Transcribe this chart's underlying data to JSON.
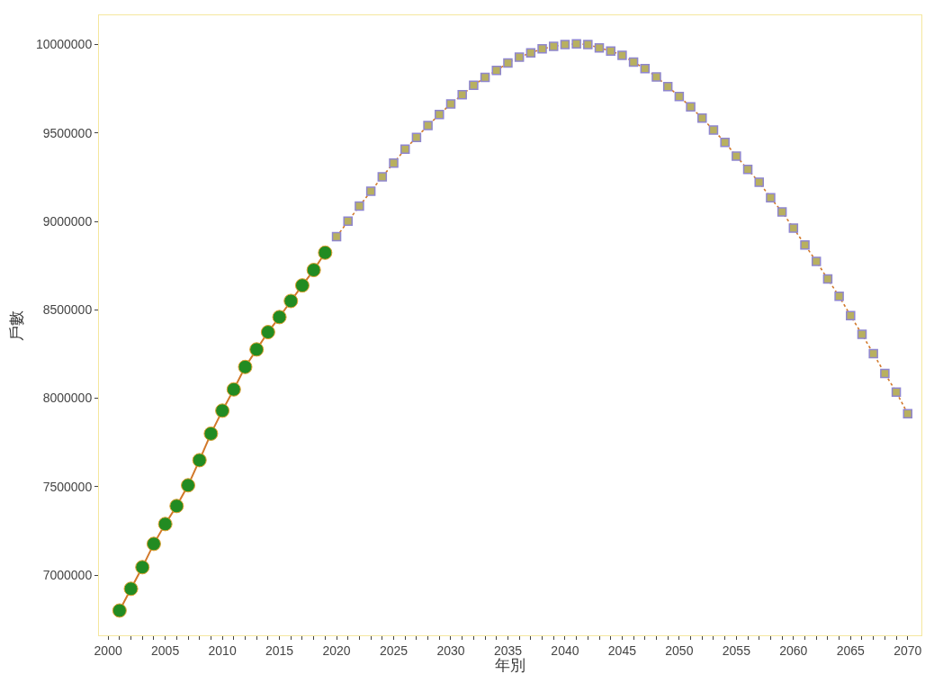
{
  "chart_data": {
    "type": "line",
    "xlabel": "年別",
    "ylabel": "戶數",
    "xlim": [
      1999.2,
      2071.2
    ],
    "xticks": [
      2000,
      {
        "value": 2001,
        "label": null
      },
      {
        "value": 2002,
        "label": null
      },
      {
        "value": 2003,
        "label": null
      },
      {
        "value": 2004,
        "label": null
      },
      2005,
      {
        "value": 2006,
        "label": null
      },
      {
        "value": 2007,
        "label": null
      },
      {
        "value": 2008,
        "label": null
      },
      {
        "value": 2009,
        "label": null
      },
      2010,
      {
        "value": 2011,
        "label": null
      },
      {
        "value": 2012,
        "label": null
      },
      {
        "value": 2013,
        "label": null
      },
      {
        "value": 2014,
        "label": null
      },
      2015,
      {
        "value": 2016,
        "label": null
      },
      {
        "value": 2017,
        "label": null
      },
      {
        "value": 2018,
        "label": null
      },
      {
        "value": 2019,
        "label": null
      },
      2020,
      {
        "value": 2021,
        "label": null
      },
      {
        "value": 2022,
        "label": null
      },
      {
        "value": 2023,
        "label": null
      },
      {
        "value": 2024,
        "label": null
      },
      2025,
      {
        "value": 2026,
        "label": null
      },
      {
        "value": 2027,
        "label": null
      },
      {
        "value": 2028,
        "label": null
      },
      {
        "value": 2029,
        "label": null
      },
      2030,
      {
        "value": 2031,
        "label": null
      },
      {
        "value": 2032,
        "label": null
      },
      {
        "value": 2033,
        "label": null
      },
      {
        "value": 2034,
        "label": null
      },
      2035,
      {
        "value": 2036,
        "label": null
      },
      {
        "value": 2037,
        "label": null
      },
      {
        "value": 2038,
        "label": null
      },
      {
        "value": 2039,
        "label": null
      },
      2040,
      {
        "value": 2041,
        "label": null
      },
      {
        "value": 2042,
        "label": null
      },
      {
        "value": 2043,
        "label": null
      },
      {
        "value": 2044,
        "label": null
      },
      2045,
      {
        "value": 2046,
        "label": null
      },
      {
        "value": 2047,
        "label": null
      },
      {
        "value": 2048,
        "label": null
      },
      {
        "value": 2049,
        "label": null
      },
      2050,
      {
        "value": 2051,
        "label": null
      },
      {
        "value": 2052,
        "label": null
      },
      {
        "value": 2053,
        "label": null
      },
      {
        "value": 2054,
        "label": null
      },
      2055,
      {
        "value": 2056,
        "label": null
      },
      {
        "value": 2057,
        "label": null
      },
      {
        "value": 2058,
        "label": null
      },
      {
        "value": 2059,
        "label": null
      },
      2060,
      {
        "value": 2061,
        "label": null
      },
      {
        "value": 2062,
        "label": null
      },
      {
        "value": 2063,
        "label": null
      },
      {
        "value": 2064,
        "label": null
      },
      2065,
      {
        "value": 2066,
        "label": null
      },
      {
        "value": 2067,
        "label": null
      },
      {
        "value": 2068,
        "label": null
      },
      {
        "value": 2069,
        "label": null
      },
      2070
    ],
    "ylim": [
      6660000,
      10165000
    ],
    "yticks": [
      7000000,
      7500000,
      8000000,
      8500000,
      9000000,
      9500000,
      10000000
    ],
    "grid": false,
    "series": [
      {
        "color": "#228b22",
        "marker": "circle",
        "line_style": "solid",
        "x": [
          2001,
          2002,
          2003,
          2004,
          2005,
          2006,
          2007,
          2008,
          2009,
          2010,
          2011,
          2012,
          2013,
          2014,
          2015,
          2016,
          2017,
          2018,
          2019
        ],
        "values": [
          6800000,
          6923000,
          7045000,
          7177000,
          7289000,
          7391000,
          7508000,
          7650000,
          7800000,
          7930000,
          8050000,
          8177000,
          8276000,
          8374000,
          8459000,
          8550000,
          8638000,
          8725000,
          8823000
        ]
      },
      {
        "color": "#b8b060",
        "marker": "square",
        "line_style": "dotted",
        "x": [
          2020,
          2021,
          2022,
          2023,
          2024,
          2025,
          2026,
          2027,
          2028,
          2029,
          2030,
          2031,
          2032,
          2033,
          2034,
          2035,
          2036,
          2037,
          2038,
          2039,
          2040,
          2041,
          2042,
          2043,
          2044,
          2045,
          2046,
          2047,
          2048,
          2049,
          2050,
          2051,
          2052,
          2053,
          2054,
          2055,
          2056,
          2057,
          2058,
          2059,
          2060,
          2061,
          2062,
          2063,
          2064,
          2065,
          2066,
          2067,
          2068,
          2069,
          2070
        ],
        "values": [
          8913000,
          9001000,
          9086000,
          9170000,
          9252000,
          9330000,
          9408000,
          9475000,
          9542000,
          9604000,
          9664000,
          9716000,
          9770000,
          9814000,
          9853000,
          9896000,
          9928000,
          9953000,
          9975000,
          9989000,
          10000000,
          10003000,
          10000000,
          9981000,
          9963000,
          9939000,
          9900000,
          9864000,
          9816000,
          9762000,
          9706000,
          9647000,
          9584000,
          9516000,
          9447000,
          9369000,
          9294000,
          9221000,
          9133000,
          9053000,
          8962000,
          8867000,
          8774000,
          8674000,
          8576000,
          8467000,
          8361000,
          8252000,
          8140000,
          8035000,
          7913000
        ]
      }
    ]
  }
}
